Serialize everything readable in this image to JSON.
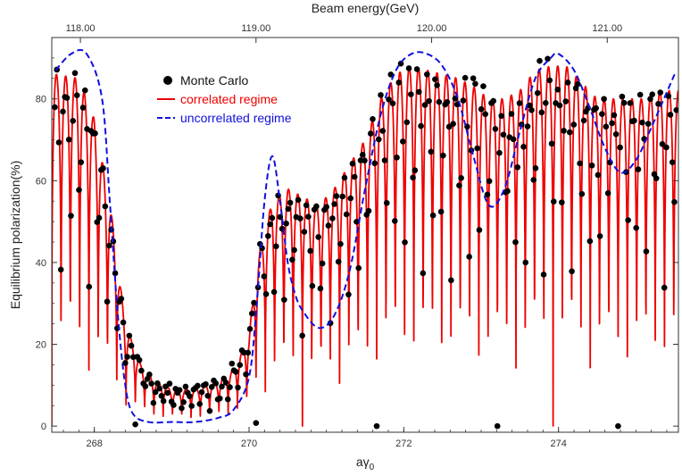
{
  "chart_data": {
    "type": "line",
    "xlabel": "aγ",
    "xlabel_subscript": "0",
    "ylabel": "Equilibrium polarization(%)",
    "top_axis_label": "Beam energy(GeV)",
    "xlim": [
      267.45,
      275.55
    ],
    "ylim": [
      -1.5,
      95
    ],
    "x_ticks": [
      268,
      270,
      272,
      274
    ],
    "y_ticks": [
      0,
      20,
      40,
      60,
      80
    ],
    "top_ticks": [
      "118.00",
      "119.00",
      "120.00",
      "121.00"
    ],
    "top_tick_positions_agamma": [
      267.82,
      270.09,
      272.36,
      274.63
    ],
    "grid": false,
    "legend_position": "top-left",
    "series": [
      {
        "name": "Monte Carlo",
        "kind": "scatter",
        "color": "#000000",
        "marker": "filled-circle"
      },
      {
        "name": "correlated regime",
        "kind": "line",
        "color": "#ee0000",
        "style": "solid",
        "envelope_x": [
          267.5,
          267.8,
          268.0,
          268.2,
          268.4,
          268.6,
          268.8,
          269.0,
          269.3,
          269.6,
          269.8,
          270.0,
          270.1,
          270.3,
          270.5,
          270.7,
          270.9,
          271.1,
          271.3,
          271.5,
          271.7,
          271.9,
          272.1,
          272.3,
          272.5,
          272.7,
          272.9,
          273.1,
          273.3,
          273.5,
          273.7,
          273.9,
          274.1,
          274.3,
          274.5,
          274.7,
          274.9,
          275.1,
          275.3,
          275.5
        ],
        "envelope_y": [
          86,
          85,
          75,
          55,
          25,
          15,
          11,
          9,
          9,
          11,
          14,
          22,
          40,
          55,
          58,
          56,
          54,
          58,
          64,
          70,
          80,
          86,
          88,
          87,
          86,
          85,
          83,
          80,
          80,
          82,
          87,
          88,
          88,
          84,
          80,
          80,
          80,
          80,
          82,
          82
        ],
        "oscillation_period": 0.12
      },
      {
        "name": "uncorrelated regime",
        "kind": "line",
        "color": "#1010dd",
        "style": "dashed",
        "x": [
          267.5,
          267.7,
          267.9,
          268.1,
          268.2,
          268.3,
          268.4,
          268.5,
          268.7,
          269.0,
          269.3,
          269.6,
          269.8,
          270.0,
          270.1,
          270.2,
          270.3,
          270.4,
          270.5,
          270.6,
          270.7,
          270.9,
          271.1,
          271.3,
          271.5,
          271.7,
          271.9,
          272.1,
          272.3,
          272.5,
          272.7,
          272.9,
          273.1,
          273.3,
          273.5,
          273.7,
          273.9,
          274.0,
          274.2,
          274.4,
          274.6,
          274.8,
          275.0,
          275.2,
          275.5
        ],
        "y": [
          87,
          91,
          91,
          80,
          55,
          28,
          10,
          3,
          1,
          1,
          1,
          2,
          4,
          12,
          30,
          55,
          66,
          55,
          40,
          32,
          28,
          24,
          27,
          38,
          58,
          76,
          87,
          91,
          91,
          88,
          80,
          66,
          54,
          58,
          72,
          85,
          90,
          91,
          87,
          78,
          68,
          62,
          65,
          73,
          86
        ]
      }
    ]
  },
  "legend": {
    "monte_carlo_label": "Monte Carlo",
    "correlated_label": "correlated regime",
    "uncorrelated_label": "uncorrelated regime"
  }
}
